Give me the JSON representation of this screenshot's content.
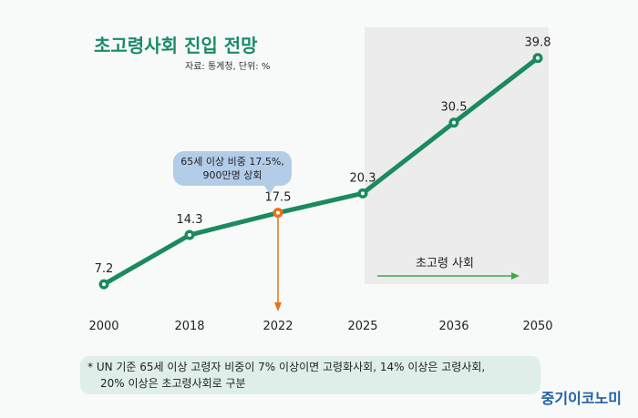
{
  "header": {
    "title": "초고령사회 진입 전망",
    "source": "자료: 통계청, 단위: %"
  },
  "callout": {
    "line1": "65세 이상 비중 17.5%,",
    "line2": "900만명 상회"
  },
  "region": {
    "label": "초고령 사회",
    "start": "2025",
    "end": "2050",
    "color": "#ececec"
  },
  "footnote": {
    "line1": "* UN 기준 65세 이상 고령자 비중이 7% 이상이면 고령화사회, 14% 이상은 고령사회,",
    "line2": "20% 이상은 초고령사회로 구분"
  },
  "logo": "중기이코노미",
  "colors": {
    "line": "#1b8a5f",
    "highlight": "#e8721c",
    "arrow": "#3aaa48"
  },
  "chart_data": {
    "type": "line",
    "categories": [
      "2000",
      "2018",
      "2022",
      "2025",
      "2036",
      "2050"
    ],
    "values": [
      7.2,
      14.3,
      17.5,
      20.3,
      30.5,
      39.8
    ],
    "highlight_category": "2022",
    "title": "초고령사회 진입 전망",
    "xlabel": "",
    "ylabel": "",
    "ylim": [
      0,
      45
    ]
  }
}
